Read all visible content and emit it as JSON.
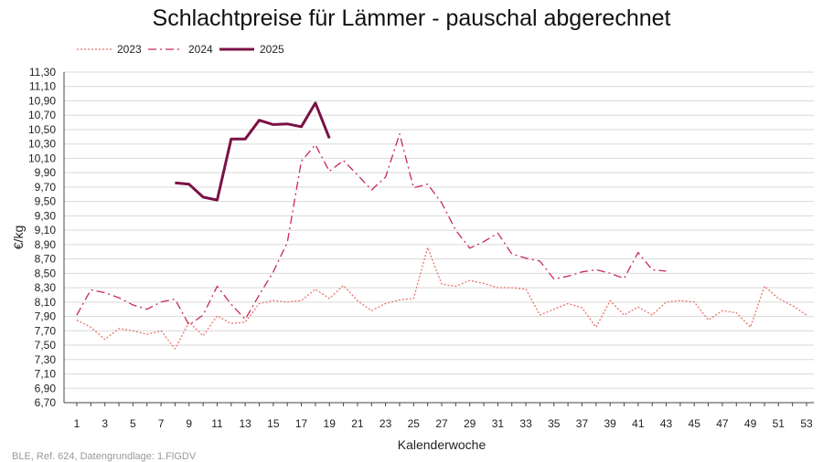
{
  "chart_data": {
    "type": "line",
    "title": "Schlachtpreise für Lämmer - pauschal abgerechnet",
    "xlabel": "Kalenderwoche",
    "ylabel": "€/kg",
    "source": "BLE, Ref. 624, Datengrundlage: 1.FlGDV",
    "xlim": [
      1,
      53
    ],
    "ylim": [
      6.7,
      11.3
    ],
    "y_step": 0.2,
    "x_tick_labels": [
      "1",
      "3",
      "5",
      "7",
      "9",
      "11",
      "13",
      "15",
      "17",
      "19",
      "21",
      "23",
      "25",
      "27",
      "29",
      "31",
      "33",
      "35",
      "37",
      "39",
      "41",
      "43",
      "45",
      "47",
      "49",
      "51",
      "53"
    ],
    "y_tick_labels": [
      "6,70",
      "6,90",
      "7,10",
      "7,30",
      "7,50",
      "7,70",
      "7,90",
      "8,10",
      "8,30",
      "8,50",
      "8,70",
      "8,90",
      "9,10",
      "9,30",
      "9,50",
      "9,70",
      "9,90",
      "10,10",
      "10,30",
      "10,50",
      "10,70",
      "10,90",
      "11,10",
      "11,30"
    ],
    "grid": "horizontal",
    "legend_position": "top-left",
    "series": [
      {
        "name": "2023",
        "color": "#e8756b",
        "style": "dotted",
        "x": [
          1,
          2,
          3,
          4,
          5,
          6,
          7,
          8,
          9,
          10,
          11,
          12,
          13,
          14,
          15,
          16,
          17,
          18,
          19,
          20,
          21,
          22,
          23,
          24,
          25,
          26,
          27,
          28,
          29,
          30,
          31,
          32,
          33,
          34,
          35,
          36,
          37,
          38,
          39,
          40,
          41,
          42,
          43,
          44,
          45,
          46,
          47,
          48,
          49,
          50,
          51,
          52,
          53
        ],
        "y": [
          7.85,
          7.75,
          7.58,
          7.73,
          7.7,
          7.65,
          7.7,
          7.45,
          7.82,
          7.63,
          7.91,
          7.8,
          7.82,
          8.08,
          8.12,
          8.1,
          8.12,
          8.28,
          8.15,
          8.33,
          8.12,
          7.98,
          8.08,
          8.13,
          8.15,
          8.86,
          8.35,
          8.32,
          8.4,
          8.36,
          8.3,
          8.3,
          8.28,
          7.92,
          8.0,
          8.08,
          8.02,
          7.75,
          8.12,
          7.92,
          8.03,
          7.92,
          8.1,
          8.12,
          8.1,
          7.85,
          7.98,
          7.95,
          7.75,
          8.32,
          8.15,
          8.05,
          7.92
        ]
      },
      {
        "name": "2024",
        "color": "#c8285a",
        "style": "dashdot",
        "x": [
          1,
          2,
          3,
          4,
          5,
          6,
          7,
          8,
          9,
          10,
          11,
          12,
          13,
          14,
          15,
          16,
          17,
          18,
          19,
          20,
          21,
          22,
          23,
          24,
          25,
          26,
          27,
          28,
          29,
          30,
          31,
          32,
          33,
          34,
          35,
          36,
          37,
          38,
          39,
          40,
          41,
          42,
          43
        ],
        "y": [
          7.92,
          8.27,
          8.23,
          8.16,
          8.06,
          8.0,
          8.1,
          8.14,
          7.78,
          7.92,
          8.32,
          8.07,
          7.86,
          8.2,
          8.52,
          8.93,
          10.06,
          10.29,
          9.92,
          10.07,
          9.87,
          9.66,
          9.84,
          10.44,
          9.69,
          9.74,
          9.48,
          9.1,
          8.85,
          8.94,
          9.06,
          8.77,
          8.71,
          8.67,
          8.42,
          8.46,
          8.52,
          8.55,
          8.5,
          8.43,
          8.79,
          8.55,
          8.53
        ]
      },
      {
        "name": "2025",
        "color": "#7a1146",
        "style": "solid",
        "x": [
          8,
          9,
          10,
          11,
          12,
          13,
          14,
          15,
          16,
          17,
          18,
          19
        ],
        "y": [
          9.76,
          9.74,
          9.56,
          9.52,
          10.37,
          10.37,
          10.63,
          10.57,
          10.58,
          10.54,
          10.87,
          10.38
        ]
      }
    ]
  }
}
